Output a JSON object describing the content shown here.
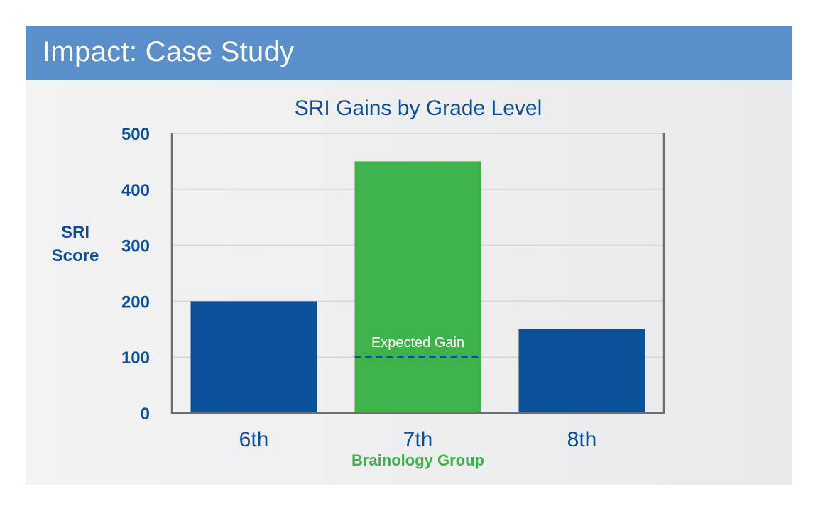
{
  "header": {
    "title": "Impact: Case Study"
  },
  "colors": {
    "header_bg": "#5b8fcb",
    "primary_bar": "#0a5199",
    "highlight_bar": "#3db34a",
    "text_blue": "#0d4f9c",
    "gridline": "#d7d8da",
    "axis": "#6d6e71"
  },
  "chart_data": {
    "type": "bar",
    "title": "SRI Gains by Grade Level",
    "ylabel": "SRI Score",
    "ylabel_lines": [
      "SRI",
      "Score"
    ],
    "xlabel": "",
    "ylim": [
      0,
      500
    ],
    "yticks": [
      "0",
      "100",
      "200",
      "300",
      "400",
      "500"
    ],
    "grid": true,
    "categories": [
      "6th",
      "7th",
      "8th"
    ],
    "values": [
      200,
      450,
      150
    ],
    "highlight_index": 1,
    "category_annotations": [
      "",
      "Brainology Group",
      ""
    ],
    "reference": {
      "label": "Expected Gain",
      "value": 100,
      "category_index": 1,
      "style": "dashed"
    }
  }
}
